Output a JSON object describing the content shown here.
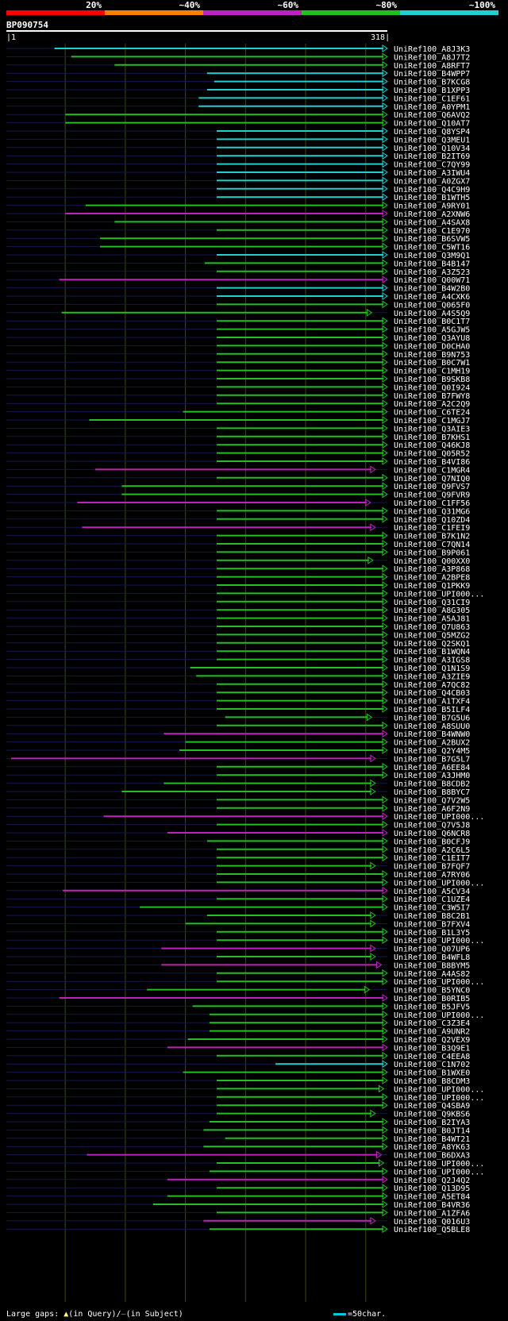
{
  "chart_data": {
    "type": "sequence_alignment_overview",
    "query_id": "BP090754",
    "query_start": 1,
    "query_end": 318,
    "query_start_label": "1",
    "query_end_label": "318",
    "identity_legend": [
      {
        "label": "20%",
        "color": "#ff0000"
      },
      {
        "label": "~40%",
        "color": "#ff8000"
      },
      {
        "label": "~60%",
        "color": "#c020c0"
      },
      {
        "label": "~80%",
        "color": "#20c020"
      },
      {
        "label": "~100%",
        "color": "#20d0d0"
      }
    ],
    "hits": [
      [
        "UniRef100_A8J3K3",
        41,
        318,
        5,
        0
      ],
      [
        "UniRef100_A8J7T2",
        55,
        318,
        4,
        0
      ],
      [
        "UniRef100_A8RFT7",
        91,
        318,
        4,
        0
      ],
      [
        "UniRef100_B4WPP7",
        168,
        318,
        5,
        0
      ],
      [
        "UniRef100_B7KCG8",
        174,
        318,
        5,
        0
      ],
      [
        "UniRef100_B1XPP3",
        168,
        318,
        5,
        0
      ],
      [
        "UniRef100_C1EF61",
        161,
        318,
        5,
        0
      ],
      [
        "UniRef100_A0YPM1",
        161,
        318,
        5,
        0
      ],
      [
        "UniRef100_Q6AVQ2",
        50,
        318,
        4,
        0
      ],
      [
        "UniRef100_Q10AT7",
        50,
        318,
        4,
        0
      ],
      [
        "UniRef100_Q8YSP4",
        176,
        318,
        5,
        0
      ],
      [
        "UniRef100_Q3MEU1",
        176,
        318,
        5,
        0
      ],
      [
        "UniRef100_Q10V34",
        176,
        318,
        5,
        0
      ],
      [
        "UniRef100_B2IT69",
        176,
        318,
        5,
        0
      ],
      [
        "UniRef100_C7QY99",
        176,
        318,
        5,
        0
      ],
      [
        "UniRef100_A3IWU4",
        176,
        318,
        5,
        0
      ],
      [
        "UniRef100_A0ZGX7",
        176,
        318,
        5,
        0
      ],
      [
        "UniRef100_Q4C9H9",
        176,
        318,
        5,
        0
      ],
      [
        "UniRef100_B1WTH5",
        176,
        318,
        5,
        0
      ],
      [
        "UniRef100_A9RY01",
        67,
        318,
        4,
        0
      ],
      [
        "UniRef100_A2XNW6",
        50,
        318,
        3,
        0
      ],
      [
        "UniRef100_A4SAX8",
        91,
        318,
        4,
        0
      ],
      [
        "UniRef100_C1E970",
        176,
        318,
        4,
        0
      ],
      [
        "UniRef100_B6SVW5",
        79,
        318,
        4,
        0
      ],
      [
        "UniRef100_C5WT16",
        79,
        318,
        4,
        0
      ],
      [
        "UniRef100_Q3M9Q1",
        176,
        318,
        5,
        0
      ],
      [
        "UniRef100_B4B147",
        166,
        318,
        4,
        0
      ],
      [
        "UniRef100_A3Z523",
        176,
        318,
        4,
        0
      ],
      [
        "UniRef100_Q00W71",
        45,
        318,
        3,
        0
      ],
      [
        "UniRef100_B4W2B0",
        176,
        318,
        5,
        0
      ],
      [
        "UniRef100_A4CXK6",
        176,
        318,
        5,
        0
      ],
      [
        "UniRef100_Q065F0",
        176,
        318,
        4,
        0
      ],
      [
        "UniRef100_A4S5Q9",
        47,
        305,
        4,
        0
      ],
      [
        "UniRef100_B0C1T7",
        176,
        318,
        4,
        0
      ],
      [
        "UniRef100_A5GJW5",
        176,
        318,
        4,
        0
      ],
      [
        "UniRef100_Q3AYU8",
        176,
        318,
        4,
        0
      ],
      [
        "UniRef100_D0CHA0",
        176,
        318,
        4,
        0
      ],
      [
        "UniRef100_B9N753",
        176,
        318,
        4,
        0
      ],
      [
        "UniRef100_B0C7W1",
        176,
        318,
        4,
        0
      ],
      [
        "UniRef100_C1MH19",
        176,
        318,
        4,
        0
      ],
      [
        "UniRef100_B9SKB8",
        176,
        318,
        4,
        0
      ],
      [
        "UniRef100_Q0I924",
        176,
        318,
        4,
        0
      ],
      [
        "UniRef100_B7FWY8",
        176,
        318,
        4,
        0
      ],
      [
        "UniRef100_A2C2Q9",
        176,
        318,
        4,
        0
      ],
      [
        "UniRef100_C6TE24",
        148,
        318,
        4,
        0
      ],
      [
        "UniRef100_C1MGJ7",
        70,
        318,
        4,
        0
      ],
      [
        "UniRef100_Q3AIE3",
        176,
        318,
        4,
        0
      ],
      [
        "UniRef100_B7KHS1",
        176,
        318,
        4,
        0
      ],
      [
        "UniRef100_Q46KJ8",
        176,
        318,
        4,
        0
      ],
      [
        "UniRef100_Q05R52",
        176,
        318,
        4,
        0
      ],
      [
        "UniRef100_B4VI86",
        176,
        318,
        4,
        0
      ],
      [
        "UniRef100_C1MGR4",
        75,
        308,
        3,
        0
      ],
      [
        "UniRef100_Q7NIQ0",
        176,
        318,
        4,
        0
      ],
      [
        "UniRef100_Q9FVS7",
        97,
        318,
        4,
        0
      ],
      [
        "UniRef100_Q9FVR9",
        97,
        318,
        4,
        0
      ],
      [
        "UniRef100_C1FF56",
        60,
        304,
        3,
        0
      ],
      [
        "UniRef100_Q31MG6",
        176,
        318,
        4,
        0
      ],
      [
        "UniRef100_Q10ZD4",
        176,
        318,
        4,
        0
      ],
      [
        "UniRef100_C1FEI9",
        64,
        308,
        3,
        0
      ],
      [
        "UniRef100_B7K1N2",
        176,
        318,
        4,
        0
      ],
      [
        "UniRef100_C7QN14",
        176,
        318,
        4,
        0
      ],
      [
        "UniRef100_B9P061",
        176,
        318,
        4,
        0
      ],
      [
        "UniRef100_Q00XX0",
        176,
        306,
        4,
        0
      ],
      [
        "UniRef100_A3P868",
        176,
        318,
        4,
        0
      ],
      [
        "UniRef100_A2BPE8",
        176,
        318,
        4,
        0
      ],
      [
        "UniRef100_Q1PKK9",
        176,
        318,
        4,
        0
      ],
      [
        "UniRef100_UPI000...",
        176,
        318,
        4,
        0
      ],
      [
        "UniRef100_Q31CI9",
        176,
        318,
        4,
        0
      ],
      [
        "UniRef100_A8G305",
        176,
        318,
        4,
        0
      ],
      [
        "UniRef100_A5AJ81",
        176,
        318,
        4,
        0
      ],
      [
        "UniRef100_Q7U863",
        176,
        318,
        4,
        0
      ],
      [
        "UniRef100_Q5MZG2",
        176,
        318,
        4,
        0
      ],
      [
        "UniRef100_Q2SKQ1",
        176,
        318,
        4,
        0
      ],
      [
        "UniRef100_B1WQN4",
        176,
        318,
        4,
        0
      ],
      [
        "UniRef100_A3IGS8",
        176,
        318,
        4,
        0
      ],
      [
        "UniRef100_Q1N1S9",
        154,
        318,
        4,
        0
      ],
      [
        "UniRef100_A3ZIE9",
        159,
        318,
        4,
        0
      ],
      [
        "UniRef100_A7QC82",
        176,
        318,
        4,
        0
      ],
      [
        "UniRef100_Q4CB03",
        176,
        318,
        4,
        0
      ],
      [
        "UniRef100_A1TXF4",
        176,
        318,
        4,
        0
      ],
      [
        "UniRef100_B5ILF4",
        176,
        318,
        4,
        0
      ],
      [
        "UniRef100_B7G5U6",
        183,
        305,
        4,
        0
      ],
      [
        "UniRef100_A8SUU0",
        176,
        318,
        4,
        0
      ],
      [
        "UniRef100_B4WNW0",
        132,
        318,
        3,
        0
      ],
      [
        "UniRef100_A2BUX2",
        150,
        318,
        4,
        0
      ],
      [
        "UniRef100_Q2Y4M5",
        145,
        318,
        4,
        0
      ],
      [
        "UniRef100_B7G5L7",
        5,
        308,
        3,
        0
      ],
      [
        "UniRef100_A6EE84",
        176,
        318,
        4,
        0
      ],
      [
        "UniRef100_A3JHM0",
        176,
        318,
        4,
        0
      ],
      [
        "UniRef100_B8CDB2",
        132,
        308,
        4,
        0
      ],
      [
        "UniRef100_B8BYC7",
        97,
        308,
        4,
        0
      ],
      [
        "UniRef100_Q7V2W5",
        176,
        318,
        4,
        0
      ],
      [
        "UniRef100_A6F2N9",
        176,
        318,
        4,
        0
      ],
      [
        "UniRef100_UPI000...",
        82,
        318,
        3,
        0
      ],
      [
        "UniRef100_Q7V5J8",
        176,
        318,
        4,
        0
      ],
      [
        "UniRef100_Q6NCR8",
        135,
        318,
        3,
        0
      ],
      [
        "UniRef100_B0CFJ9",
        168,
        318,
        4,
        0
      ],
      [
        "UniRef100_A2C6L5",
        176,
        318,
        4,
        0
      ],
      [
        "UniRef100_C1EIT7",
        176,
        318,
        4,
        0
      ],
      [
        "UniRef100_B7FQF7",
        176,
        308,
        4,
        0
      ],
      [
        "UniRef100_A7RY06",
        176,
        318,
        4,
        0
      ],
      [
        "UniRef100_UPI000...",
        176,
        318,
        4,
        0
      ],
      [
        "UniRef100_A5CV34",
        48,
        318,
        3,
        0
      ],
      [
        "UniRef100_C1UZE4",
        176,
        318,
        4,
        0
      ],
      [
        "UniRef100_C3W5I7",
        112,
        318,
        4,
        0
      ],
      [
        "UniRef100_B8C2B1",
        168,
        308,
        4,
        0
      ],
      [
        "UniRef100_B7FXV4",
        150,
        308,
        4,
        0
      ],
      [
        "UniRef100_B1L3Y5",
        176,
        318,
        4,
        0
      ],
      [
        "UniRef100_UPI000...",
        176,
        318,
        4,
        0
      ],
      [
        "UniRef100_Q07UP6",
        130,
        308,
        3,
        0
      ],
      [
        "UniRef100_B4WFL8",
        176,
        308,
        4,
        0
      ],
      [
        "UniRef100_B8BYM5",
        130,
        313,
        3,
        0
      ],
      [
        "UniRef100_A4AS82",
        176,
        318,
        4,
        0
      ],
      [
        "UniRef100_UPI000...",
        176,
        318,
        4,
        0
      ],
      [
        "UniRef100_B5YNC0",
        118,
        303,
        4,
        0
      ],
      [
        "UniRef100_B0RIB5",
        45,
        318,
        3,
        0
      ],
      [
        "UniRef100_B5JFV5",
        156,
        318,
        4,
        0
      ],
      [
        "UniRef100_UPI000...",
        170,
        318,
        4,
        0
      ],
      [
        "UniRef100_C3Z3E4",
        170,
        318,
        4,
        0
      ],
      [
        "UniRef100_A9UNR2",
        170,
        318,
        4,
        0
      ],
      [
        "UniRef100_Q2VEX9",
        152,
        318,
        4,
        0
      ],
      [
        "UniRef100_B3Q9E1",
        135,
        318,
        3,
        0
      ],
      [
        "UniRef100_C4EEA8",
        176,
        318,
        4,
        0
      ],
      [
        "UniRef100_C1N702",
        225,
        318,
        5,
        0
      ],
      [
        "UniRef100_B1WXE0",
        148,
        318,
        4,
        0
      ],
      [
        "UniRef100_B8CDM3",
        176,
        318,
        4,
        0
      ],
      [
        "UniRef100_UPI000...",
        176,
        315,
        4,
        0
      ],
      [
        "UniRef100_UPI000...",
        176,
        318,
        4,
        0
      ],
      [
        "UniRef100_Q4SBA9",
        176,
        318,
        4,
        0
      ],
      [
        "UniRef100_Q9KBS6",
        176,
        308,
        4,
        0
      ],
      [
        "UniRef100_B2IYA3",
        170,
        318,
        4,
        0
      ],
      [
        "UniRef100_B0JT14",
        165,
        318,
        4,
        0
      ],
      [
        "UniRef100_B4WT21",
        183,
        318,
        4,
        0
      ],
      [
        "UniRef100_A8YK63",
        165,
        318,
        4,
        0
      ],
      [
        "UniRef100_B6DXA3",
        68,
        313,
        3,
        0
      ],
      [
        "UniRef100_UPI000...",
        176,
        315,
        4,
        0
      ],
      [
        "UniRef100_UPI000...",
        170,
        318,
        4,
        0
      ],
      [
        "UniRef100_Q2J4Q2",
        135,
        318,
        3,
        0
      ],
      [
        "UniRef100_Q13D95",
        176,
        318,
        4,
        0
      ],
      [
        "UniRef100_A5ET84",
        135,
        318,
        4,
        0
      ],
      [
        "UniRef100_B4VR36",
        123,
        318,
        4,
        0
      ],
      [
        "UniRef100_A1ZFA6",
        176,
        318,
        4,
        0
      ],
      [
        "UniRef100_Q016U3",
        165,
        308,
        3,
        0
      ],
      [
        "UniRef100_Q5BLE8",
        170,
        318,
        4,
        0
      ]
    ]
  },
  "footer": {
    "gaps_label": "Large gaps:",
    "tri_glyph": "▲",
    "in_query": "(in Query)/",
    "slash_glyph": "–",
    "in_subject": "(in Subject)",
    "scale_label": "=50char."
  }
}
